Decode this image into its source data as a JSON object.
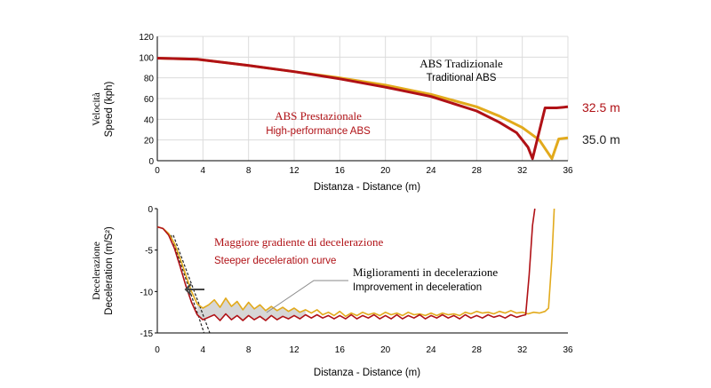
{
  "colors": {
    "traditional": "#e2aa1c",
    "high_performance": "#b01116",
    "axis": "#000000",
    "grid": "#dcdcdc",
    "shade": "#cfcfcf",
    "dashed": "#222222"
  },
  "chart_data": [
    {
      "type": "line",
      "xlabel": "Distanza - Distance (m)",
      "ylabel_it": "Velocità",
      "ylabel_en": "Speed (kph)",
      "xlim": [
        0,
        36
      ],
      "ylim": [
        0,
        120
      ],
      "xticks": [
        0,
        4,
        8,
        12,
        16,
        20,
        24,
        28,
        32,
        36
      ],
      "yticks": [
        0,
        20,
        40,
        60,
        80,
        100,
        120
      ],
      "grid": true,
      "series": [
        {
          "name_it": "ABS Tradizionale",
          "name_en": "Traditional ABS",
          "color": "traditional",
          "x": [
            0,
            3.5,
            8,
            12,
            16,
            20,
            24,
            28,
            30,
            32,
            33.5,
            34.6,
            35.2,
            36
          ],
          "y": [
            99,
            98,
            92,
            86,
            80,
            73,
            64,
            52,
            43,
            32,
            20,
            2,
            21,
            22
          ]
        },
        {
          "name_it": "ABS Prestazionale",
          "name_en": "High-performance ABS",
          "color": "high_performance",
          "x": [
            0,
            3.5,
            8,
            12,
            16,
            20,
            24,
            28,
            30,
            31.5,
            32.5,
            32.9,
            34,
            35,
            36
          ],
          "y": [
            99,
            98,
            92,
            86,
            79,
            71,
            62,
            48,
            37,
            27,
            13,
            2,
            51,
            51,
            52
          ]
        }
      ],
      "annotations": [
        {
          "text": "32.5 m",
          "color": "high_performance"
        },
        {
          "text": "35.0 m",
          "color": "axis"
        }
      ]
    },
    {
      "type": "line",
      "xlabel": "Distanza - Distance (m)",
      "ylabel_it": "Decelerazione",
      "ylabel_en": "Deceleration (m/S²)",
      "xlim": [
        0,
        36
      ],
      "ylim": [
        -15,
        0
      ],
      "xticks": [
        0,
        4,
        8,
        12,
        16,
        20,
        24,
        28,
        32,
        36
      ],
      "yticks": [
        0,
        -5,
        -10,
        -15
      ],
      "grid": false,
      "series": [
        {
          "name": "Traditional ABS",
          "color": "traditional",
          "x": [
            0,
            0.5,
            1,
            1.5,
            2,
            2.5,
            3,
            3.5,
            4,
            4.5,
            5,
            5.5,
            6,
            6.5,
            7,
            7.5,
            8,
            8.5,
            9,
            9.5,
            10,
            10.5,
            11,
            11.5,
            12,
            12.5,
            13,
            13.5,
            14,
            14.5,
            15,
            15.5,
            16,
            16.5,
            17,
            17.5,
            18,
            18.5,
            19,
            19.5,
            20,
            20.5,
            21,
            21.5,
            22,
            22.5,
            23,
            23.5,
            24,
            24.5,
            25,
            25.5,
            26,
            26.5,
            27,
            27.5,
            28,
            28.5,
            29,
            29.5,
            30,
            30.5,
            31,
            31.5,
            32,
            32.5,
            33,
            33.5,
            34,
            34.3,
            34.6,
            34.8
          ],
          "y": [
            -2.2,
            -2.4,
            -3.0,
            -4.2,
            -6.0,
            -8.0,
            -10.0,
            -11.5,
            -12.0,
            -11.6,
            -11.0,
            -11.9,
            -10.8,
            -11.8,
            -11.2,
            -12.2,
            -11.3,
            -12.1,
            -11.6,
            -12.3,
            -11.8,
            -12.3,
            -11.9,
            -12.4,
            -12.0,
            -12.5,
            -12.2,
            -12.6,
            -12.2,
            -12.8,
            -12.5,
            -12.9,
            -12.4,
            -13.0,
            -12.6,
            -12.9,
            -12.5,
            -12.8,
            -12.6,
            -12.9,
            -12.5,
            -12.8,
            -12.6,
            -12.9,
            -12.5,
            -12.8,
            -12.7,
            -12.9,
            -12.6,
            -12.9,
            -12.6,
            -12.8,
            -12.7,
            -12.9,
            -12.5,
            -12.7,
            -12.4,
            -12.6,
            -12.5,
            -12.7,
            -12.4,
            -12.6,
            -12.3,
            -12.6,
            -12.5,
            -12.7,
            -12.5,
            -12.6,
            -12.4,
            -12.0,
            -6.0,
            0
          ]
        },
        {
          "name": "High-performance ABS",
          "color": "high_performance",
          "x": [
            0,
            0.5,
            1,
            1.5,
            2,
            2.5,
            3,
            3.5,
            4,
            4.5,
            5,
            5.5,
            6,
            6.5,
            7,
            7.5,
            8,
            8.5,
            9,
            9.5,
            10,
            10.5,
            11,
            11.5,
            12,
            12.5,
            13,
            13.5,
            14,
            14.5,
            15,
            15.5,
            16,
            16.5,
            17,
            17.5,
            18,
            18.5,
            19,
            19.5,
            20,
            20.5,
            21,
            21.5,
            22,
            22.5,
            23,
            23.5,
            24,
            24.5,
            25,
            25.5,
            26,
            26.5,
            27,
            27.5,
            28,
            28.5,
            29,
            29.5,
            30,
            30.5,
            31,
            31.5,
            32,
            32.3,
            32.6,
            32.9,
            33.1
          ],
          "y": [
            -2.2,
            -2.4,
            -3.2,
            -4.8,
            -7.0,
            -9.3,
            -11.3,
            -12.8,
            -13.4,
            -13.1,
            -12.8,
            -13.5,
            -12.7,
            -13.4,
            -12.9,
            -13.5,
            -12.9,
            -13.4,
            -13.0,
            -13.5,
            -12.9,
            -13.4,
            -13.0,
            -13.3,
            -12.9,
            -13.3,
            -12.8,
            -13.2,
            -12.8,
            -13.2,
            -12.9,
            -13.3,
            -12.9,
            -13.3,
            -12.8,
            -13.3,
            -12.9,
            -13.2,
            -12.8,
            -13.3,
            -12.9,
            -13.3,
            -12.8,
            -13.3,
            -12.9,
            -13.2,
            -12.8,
            -13.3,
            -12.9,
            -13.2,
            -12.8,
            -13.2,
            -12.9,
            -13.3,
            -12.8,
            -13.2,
            -12.9,
            -13.2,
            -12.8,
            -13.1,
            -12.9,
            -13.2,
            -12.8,
            -13.1,
            -12.9,
            -12.8,
            -8.0,
            -2.0,
            0
          ]
        }
      ],
      "annotations": [
        {
          "text": "Maggiore gradiente di decelerazione",
          "color": "high_performance"
        },
        {
          "text": "Steeper deceleration curve",
          "color": "high_performance"
        },
        {
          "text": "Miglioramenti in decelerazione",
          "color": "axis"
        },
        {
          "text": "Improvement in deceleration",
          "color": "axis"
        }
      ]
    }
  ]
}
